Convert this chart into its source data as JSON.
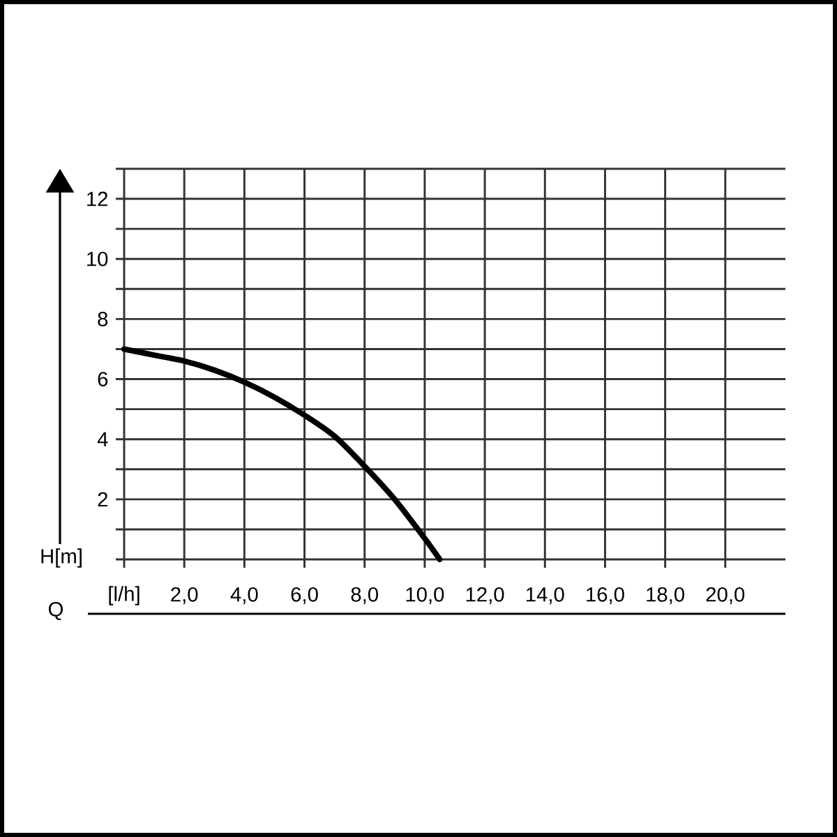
{
  "chart_data": {
    "type": "line",
    "xlabel": "Q",
    "ylabel": "H[m]",
    "x": [
      0,
      1,
      2,
      3,
      4,
      5,
      6,
      7,
      8,
      9,
      10,
      10.5
    ],
    "series": [
      {
        "color": "#000000",
        "values": [
          7.0,
          6.8,
          6.6,
          6.3,
          5.9,
          5.4,
          4.8,
          4.1,
          3.1,
          2.0,
          0.7,
          0
        ]
      }
    ],
    "xlim": [
      0,
      22
    ],
    "ylim": [
      0,
      13
    ],
    "xticks": [
      {
        "value": 0,
        "label": "[l/h]"
      },
      {
        "value": 2,
        "label": "2,0"
      },
      {
        "value": 4,
        "label": "4,0"
      },
      {
        "value": 6,
        "label": "6,0"
      },
      {
        "value": 8,
        "label": "8,0"
      },
      {
        "value": 10,
        "label": "10,0"
      },
      {
        "value": 12,
        "label": "12,0"
      },
      {
        "value": 14,
        "label": "14,0"
      },
      {
        "value": 16,
        "label": "16,0"
      },
      {
        "value": 18,
        "label": "18,0"
      },
      {
        "value": 20,
        "label": "20,0"
      }
    ],
    "yticks": [
      {
        "value": 0,
        "label": null
      },
      {
        "value": 1,
        "label": null
      },
      2,
      {
        "value": 3,
        "label": null
      },
      4,
      {
        "value": 5,
        "label": null
      },
      6,
      {
        "value": 7,
        "label": null
      },
      8,
      {
        "value": 9,
        "label": null
      },
      10,
      {
        "value": 11,
        "label": null
      },
      12,
      {
        "value": 13,
        "label": null
      }
    ],
    "grid": true,
    "line_style": "solid"
  }
}
